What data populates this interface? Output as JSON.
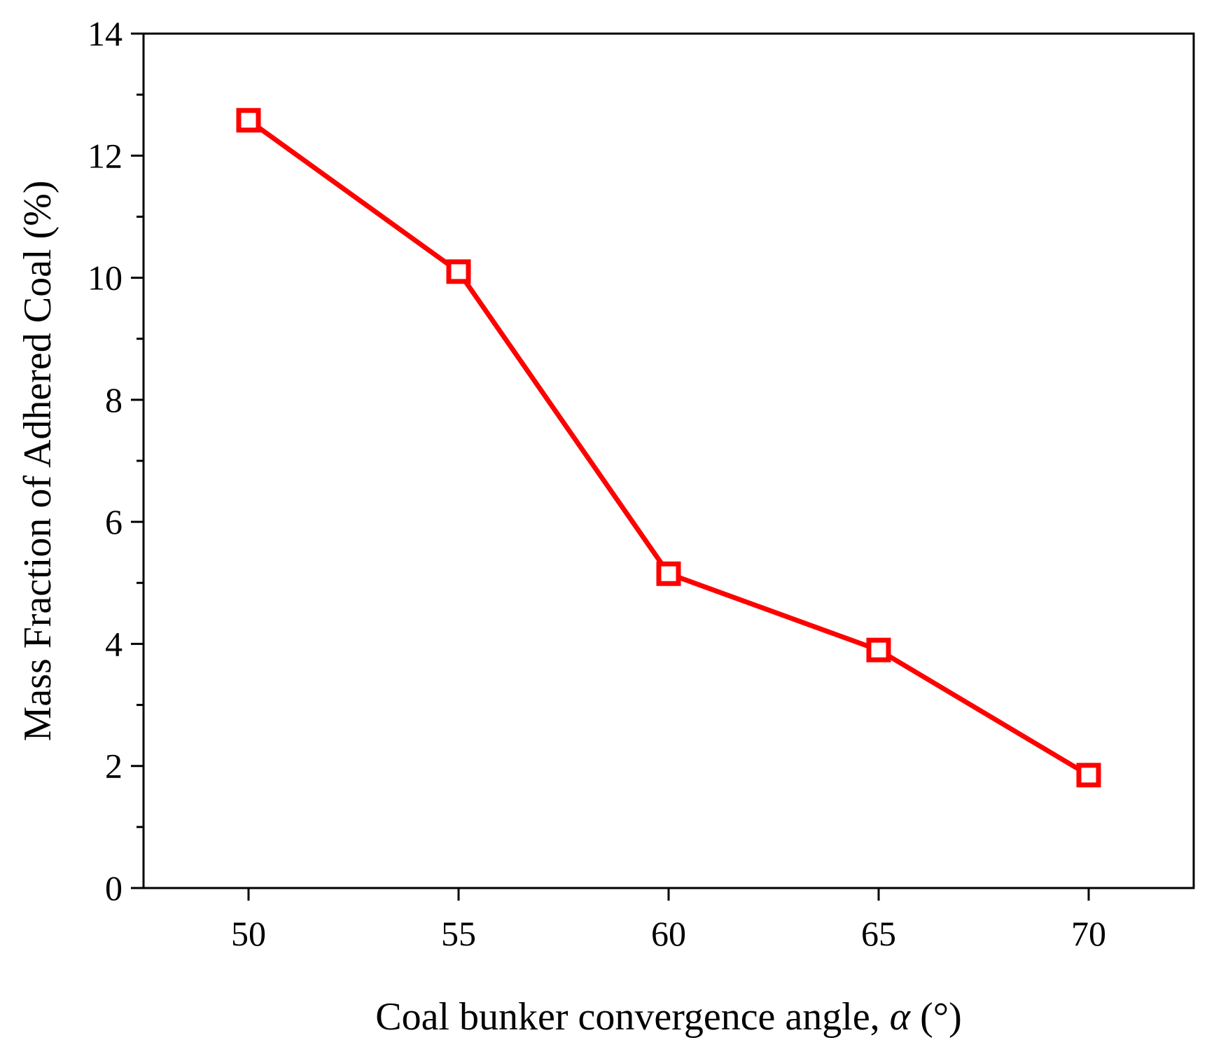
{
  "chart_data": {
    "type": "line",
    "title": "",
    "xlabel": "Coal bunker convergence angle, ",
    "xlabel_symbol": "α",
    "xlabel_unit": " (°)",
    "ylabel": "Mass Fraction of Adhered Coal (%)",
    "xlim": [
      47.5,
      72.5
    ],
    "ylim": [
      0,
      14
    ],
    "xticks": [
      50,
      55,
      60,
      65,
      70
    ],
    "yticks": [
      0,
      2,
      4,
      6,
      8,
      10,
      12,
      14
    ],
    "grid": false,
    "legend": "none",
    "series": [
      {
        "color": "#ff0000",
        "marker": "open-square",
        "x": [
          50,
          55,
          60,
          65,
          70
        ],
        "y": [
          12.58,
          10.1,
          5.15,
          3.9,
          1.85
        ]
      }
    ]
  }
}
